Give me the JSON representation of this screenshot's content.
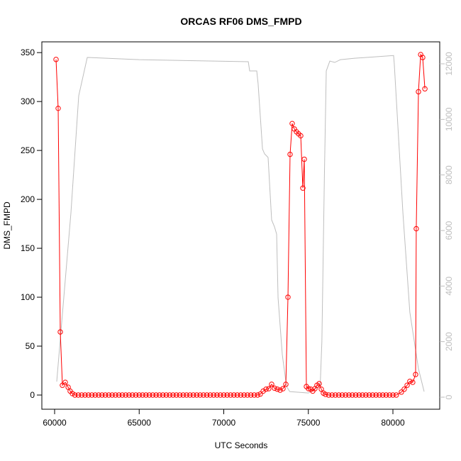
{
  "chart_data": {
    "type": "line",
    "title": "ORCAS RF06 DMS_FMPD",
    "x_label": "UTC Seconds",
    "y_label": "DMS_FMPD",
    "xlim": [
      59245,
      82767
    ],
    "xticks": [
      60000,
      65000,
      70000,
      75000,
      80000
    ],
    "ylim": [
      -14.5,
      361
    ],
    "yticks": [
      0,
      50,
      100,
      150,
      200,
      250,
      300,
      350
    ],
    "y2lim": [
      -434,
      12791
    ],
    "y2ticks": [
      0,
      2000,
      4000,
      6000,
      8000,
      10000,
      12000
    ],
    "series": [
      {
        "color": "#bebebe",
        "axis": "y2",
        "markers": false,
        "x": [
          60125,
          60965,
          61425,
          61930,
          65000,
          71450,
          71530,
          71950,
          72030,
          72290,
          72410,
          72620,
          72830,
          73000,
          73125,
          73210,
          73460,
          73710,
          73800,
          73900,
          75000,
          75700,
          75800,
          75950,
          76060,
          76270,
          76560,
          76900,
          77735,
          80040,
          80080,
          80590,
          81000,
          81510,
          81845
        ],
        "values": [
          562,
          6640,
          10850,
          12230,
          12150,
          12075,
          11745,
          11745,
          11285,
          8935,
          8760,
          8630,
          6380,
          6130,
          5870,
          3575,
          1530,
          380,
          300,
          200,
          150,
          400,
          2000,
          8000,
          11745,
          12100,
          12050,
          12150,
          12200,
          12300,
          12000,
          6640,
          3060,
          1020,
          200
        ]
      },
      {
        "color": "#ff0000",
        "markers": true,
        "x": [
          60084,
          60210,
          60335,
          60460,
          60630,
          60800,
          60920,
          61050,
          61200,
          61400,
          61600,
          61800,
          62000,
          62200,
          62400,
          62600,
          62800,
          63000,
          63200,
          63400,
          63600,
          63800,
          64000,
          64200,
          64400,
          64600,
          64800,
          65000,
          65200,
          65400,
          65600,
          65800,
          66000,
          66200,
          66400,
          66600,
          66800,
          67000,
          67200,
          67400,
          67600,
          67800,
          68000,
          68200,
          68400,
          68600,
          68800,
          69000,
          69200,
          69400,
          69600,
          69800,
          70000,
          70200,
          70400,
          70600,
          70800,
          71000,
          71200,
          71400,
          71600,
          71800,
          72000,
          72160,
          72330,
          72500,
          72660,
          72830,
          73000,
          73165,
          73330,
          73500,
          73670,
          73795,
          73920,
          74045,
          74170,
          74300,
          74420,
          74550,
          74675,
          74760,
          74885,
          75010,
          75140,
          75260,
          75390,
          75510,
          75640,
          75765,
          75890,
          76015,
          76200,
          76400,
          76600,
          76800,
          77000,
          77200,
          77400,
          77600,
          77800,
          78000,
          78200,
          78400,
          78600,
          78800,
          79000,
          79200,
          79400,
          79600,
          79800,
          80000,
          80200,
          80500,
          80670,
          80840,
          81000,
          81170,
          81340,
          81380,
          81510,
          81640,
          81760,
          81890
        ],
        "values": [
          343,
          293,
          64.5,
          10,
          13,
          8,
          4,
          1.5,
          0,
          0,
          0,
          0,
          0,
          0,
          0,
          0,
          0,
          0,
          0,
          0,
          0,
          0,
          0,
          0,
          0,
          0,
          0,
          0,
          0,
          0,
          0,
          0,
          0,
          0,
          0,
          0,
          0,
          0,
          0,
          0,
          0,
          0,
          0,
          0,
          0,
          0,
          0,
          0,
          0,
          0,
          0,
          0,
          0,
          0,
          0,
          0,
          0,
          0,
          0,
          0,
          0,
          0,
          0,
          1,
          4,
          6,
          6.5,
          11,
          7,
          6,
          5,
          6.5,
          11,
          100,
          246,
          277.5,
          272,
          269,
          267,
          265,
          211.5,
          241,
          8.7,
          6.5,
          6,
          4,
          6.5,
          10,
          11.6,
          6,
          2,
          0.7,
          0,
          0,
          0,
          0,
          0,
          0,
          0,
          0,
          0,
          0,
          0,
          0,
          0,
          0,
          0,
          0,
          0,
          0,
          0,
          0,
          0,
          3,
          6,
          10,
          14,
          13,
          21,
          170,
          310,
          348,
          345,
          313
        ]
      }
    ]
  }
}
